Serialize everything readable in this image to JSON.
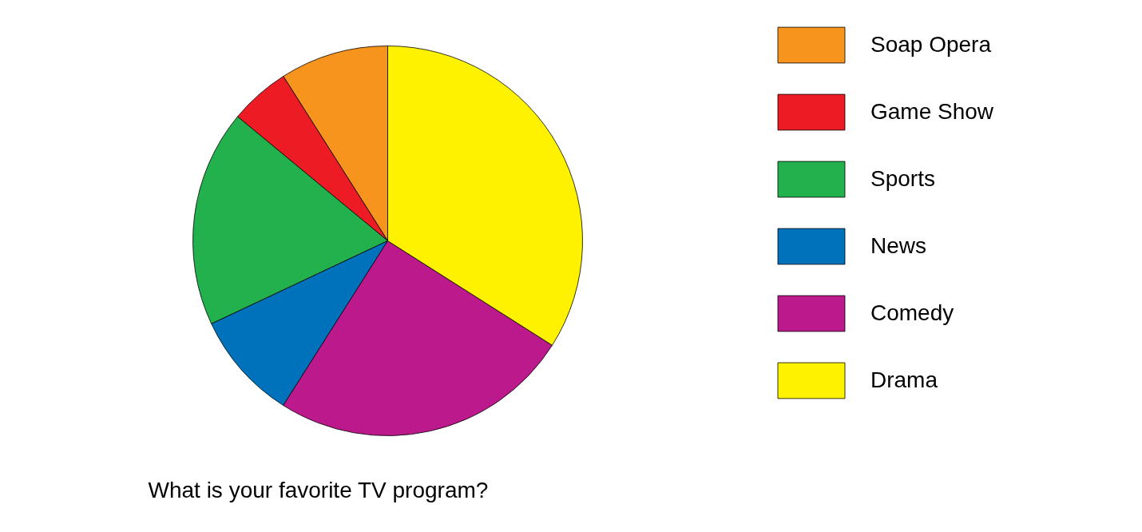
{
  "chart_data": {
    "type": "pie",
    "title": "What is your favorite TV program?",
    "categories": [
      "Soap Opera",
      "Game Show",
      "Sports",
      "News",
      "Comedy",
      "Drama"
    ],
    "values": [
      9,
      5,
      18,
      9,
      25,
      34
    ],
    "colors": [
      "#f7941d",
      "#ed1c24",
      "#22b14c",
      "#0072bc",
      "#bc1a8c",
      "#fff200"
    ],
    "legend": "right"
  }
}
